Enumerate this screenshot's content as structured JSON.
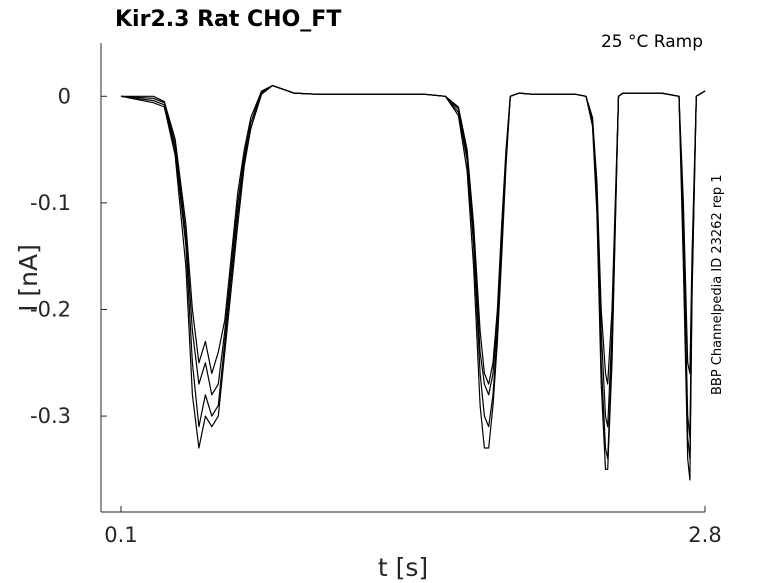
{
  "chart_data": {
    "type": "line",
    "title": "Kir2.3  Rat  CHO_FT",
    "annotation": "25 °C  Ramp",
    "side_annotation": "BBP Channelpedia ID 23262 rep 1",
    "xlabel": "t [s]",
    "ylabel": "I [nA]",
    "xlim": [
      0.1,
      2.8
    ],
    "ylim": [
      -0.39,
      0.05
    ],
    "xticks": [
      0.1,
      2.8
    ],
    "xtick_labels": [
      "0.1",
      "2.8"
    ],
    "yticks": [
      0,
      -0.1,
      -0.2,
      -0.3
    ],
    "ytick_labels": [
      "0",
      "-0.1",
      "-0.2",
      "-0.3"
    ],
    "grid": false,
    "line_color": "#000000",
    "series": [
      {
        "x": [
          0.1,
          0.25,
          0.3,
          0.35,
          0.4,
          0.43,
          0.46,
          0.49,
          0.52,
          0.55,
          0.58,
          0.61,
          0.64,
          0.67,
          0.7,
          0.75,
          0.8,
          0.9,
          1.0,
          1.2,
          1.4,
          1.5,
          1.6,
          1.66,
          1.7,
          1.73,
          1.76,
          1.78,
          1.8,
          1.82,
          1.84,
          1.86,
          1.88,
          1.9,
          1.94,
          2.0,
          2.1,
          2.2,
          2.25,
          2.28,
          2.3,
          2.32,
          2.34,
          2.35,
          2.37,
          2.4,
          2.42,
          2.5,
          2.6,
          2.68,
          2.7,
          2.72,
          2.73,
          2.74,
          2.76,
          2.8
        ],
        "values": [
          0.0,
          0.0,
          -0.005,
          -0.04,
          -0.12,
          -0.2,
          -0.25,
          -0.23,
          -0.26,
          -0.24,
          -0.21,
          -0.15,
          -0.09,
          -0.05,
          -0.02,
          0.005,
          0.01,
          0.003,
          0.002,
          0.002,
          0.002,
          0.002,
          0.0,
          -0.01,
          -0.05,
          -0.12,
          -0.22,
          -0.26,
          -0.27,
          -0.25,
          -0.2,
          -0.12,
          -0.05,
          0.0,
          0.003,
          0.002,
          0.002,
          0.002,
          0.0,
          -0.02,
          -0.08,
          -0.2,
          -0.26,
          -0.27,
          -0.2,
          0.0,
          0.003,
          0.003,
          0.003,
          0.0,
          -0.1,
          -0.25,
          -0.26,
          -0.15,
          0.0,
          0.005
        ]
      },
      {
        "x": [
          0.1,
          0.25,
          0.3,
          0.35,
          0.4,
          0.43,
          0.46,
          0.49,
          0.52,
          0.55,
          0.58,
          0.61,
          0.64,
          0.67,
          0.7,
          0.75,
          0.8,
          0.9,
          1.0,
          1.2,
          1.4,
          1.5,
          1.6,
          1.66,
          1.7,
          1.73,
          1.76,
          1.78,
          1.8,
          1.82,
          1.84,
          1.86,
          1.88,
          1.9,
          1.94,
          2.0,
          2.1,
          2.2,
          2.25,
          2.28,
          2.3,
          2.32,
          2.34,
          2.35,
          2.37,
          2.4,
          2.42,
          2.5,
          2.6,
          2.68,
          2.7,
          2.72,
          2.73,
          2.74,
          2.76,
          2.8
        ],
        "values": [
          0.0,
          -0.002,
          -0.006,
          -0.045,
          -0.13,
          -0.22,
          -0.27,
          -0.25,
          -0.28,
          -0.27,
          -0.22,
          -0.16,
          -0.1,
          -0.055,
          -0.025,
          0.004,
          0.01,
          0.003,
          0.002,
          0.002,
          0.002,
          0.002,
          0.0,
          -0.012,
          -0.055,
          -0.13,
          -0.24,
          -0.27,
          -0.28,
          -0.26,
          -0.21,
          -0.13,
          -0.055,
          0.0,
          0.003,
          0.002,
          0.002,
          0.002,
          0.0,
          -0.022,
          -0.09,
          -0.22,
          -0.3,
          -0.31,
          -0.22,
          0.0,
          0.003,
          0.003,
          0.003,
          0.0,
          -0.12,
          -0.3,
          -0.32,
          -0.17,
          0.0,
          0.005
        ]
      },
      {
        "x": [
          0.1,
          0.25,
          0.3,
          0.35,
          0.4,
          0.43,
          0.46,
          0.49,
          0.52,
          0.55,
          0.58,
          0.61,
          0.64,
          0.67,
          0.7,
          0.75,
          0.8,
          0.9,
          1.0,
          1.2,
          1.4,
          1.5,
          1.6,
          1.66,
          1.7,
          1.73,
          1.76,
          1.78,
          1.8,
          1.82,
          1.84,
          1.86,
          1.88,
          1.9,
          1.94,
          2.0,
          2.1,
          2.2,
          2.25,
          2.28,
          2.3,
          2.32,
          2.34,
          2.35,
          2.37,
          2.4,
          2.42,
          2.5,
          2.6,
          2.68,
          2.7,
          2.72,
          2.73,
          2.74,
          2.76,
          2.8
        ],
        "values": [
          0.0,
          -0.004,
          -0.008,
          -0.05,
          -0.14,
          -0.25,
          -0.31,
          -0.28,
          -0.3,
          -0.29,
          -0.23,
          -0.17,
          -0.11,
          -0.06,
          -0.03,
          0.003,
          0.01,
          0.003,
          0.002,
          0.002,
          0.002,
          0.002,
          0.0,
          -0.015,
          -0.06,
          -0.14,
          -0.26,
          -0.3,
          -0.31,
          -0.28,
          -0.22,
          -0.14,
          -0.06,
          0.0,
          0.003,
          0.002,
          0.002,
          0.002,
          0.0,
          -0.025,
          -0.1,
          -0.25,
          -0.33,
          -0.34,
          -0.24,
          0.0,
          0.003,
          0.003,
          0.003,
          0.0,
          -0.14,
          -0.32,
          -0.34,
          -0.18,
          0.0,
          0.005
        ]
      },
      {
        "x": [
          0.1,
          0.25,
          0.3,
          0.35,
          0.4,
          0.43,
          0.46,
          0.49,
          0.52,
          0.55,
          0.58,
          0.61,
          0.64,
          0.67,
          0.7,
          0.75,
          0.8,
          0.9,
          1.0,
          1.2,
          1.4,
          1.5,
          1.6,
          1.66,
          1.7,
          1.73,
          1.76,
          1.78,
          1.8,
          1.82,
          1.84,
          1.86,
          1.88,
          1.9,
          1.94,
          2.0,
          2.1,
          2.2,
          2.25,
          2.28,
          2.3,
          2.32,
          2.34,
          2.35,
          2.37,
          2.4,
          2.42,
          2.5,
          2.6,
          2.68,
          2.7,
          2.72,
          2.73,
          2.74,
          2.76,
          2.8
        ],
        "values": [
          0.0,
          -0.006,
          -0.01,
          -0.055,
          -0.16,
          -0.28,
          -0.33,
          -0.3,
          -0.31,
          -0.3,
          -0.24,
          -0.18,
          -0.12,
          -0.065,
          -0.03,
          0.002,
          0.01,
          0.003,
          0.002,
          0.002,
          0.002,
          0.002,
          0.0,
          -0.018,
          -0.07,
          -0.16,
          -0.29,
          -0.33,
          -0.33,
          -0.29,
          -0.23,
          -0.15,
          -0.065,
          0.0,
          0.003,
          0.002,
          0.002,
          0.002,
          0.0,
          -0.028,
          -0.11,
          -0.27,
          -0.35,
          -0.35,
          -0.25,
          0.0,
          0.003,
          0.003,
          0.003,
          0.0,
          -0.16,
          -0.34,
          -0.36,
          -0.19,
          0.0,
          0.005
        ]
      }
    ]
  }
}
